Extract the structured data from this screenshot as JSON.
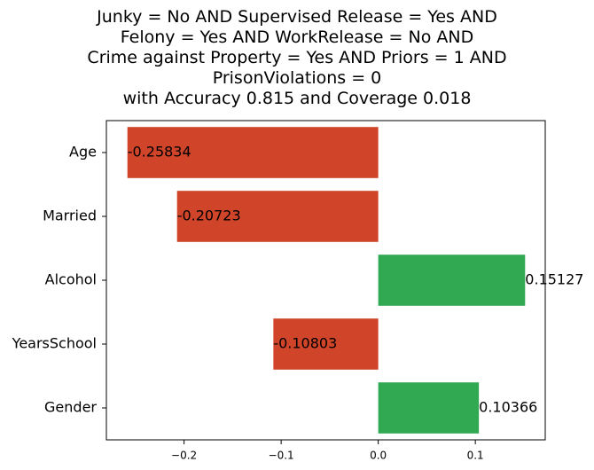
{
  "title_lines": [
    "Junky = No AND Supervised Release = Yes AND",
    "Felony = Yes AND WorkRelease = No AND",
    "Crime against Property = Yes AND Priors = 1 AND",
    "PrisonViolations = 0",
    "with Accuracy 0.815 and Coverage 0.018"
  ],
  "chart_data": {
    "type": "bar",
    "orientation": "horizontal",
    "title": "Junky = No AND Supervised Release = Yes AND Felony = Yes AND WorkRelease = No AND Crime against Property = Yes AND Priors = 1 AND PrisonViolations = 0 with Accuracy 0.815 and Coverage 0.018",
    "categories": [
      "Age",
      "Married",
      "Alcohol",
      "YearsSchool",
      "Gender"
    ],
    "values": [
      -0.25834,
      -0.20723,
      0.15127,
      -0.10803,
      0.10366
    ],
    "value_labels": [
      "-0.25834",
      "-0.20723",
      "0.15127",
      "-0.10803",
      "0.10366"
    ],
    "xlim": [
      -0.28,
      0.172
    ],
    "xticks": [
      -0.2,
      -0.1,
      0.0,
      0.1
    ],
    "xtick_labels": [
      "−0.2",
      "−0.1",
      "0.0",
      "0.1"
    ],
    "xlabel": "",
    "ylabel": "",
    "grid": false,
    "colors": {
      "negative": "#d0452a",
      "positive": "#31a852"
    }
  }
}
